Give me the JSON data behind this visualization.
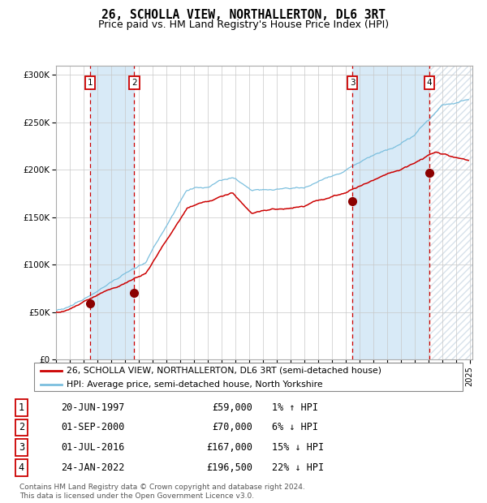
{
  "title": "26, SCHOLLA VIEW, NORTHALLERTON, DL6 3RT",
  "subtitle": "Price paid vs. HM Land Registry's House Price Index (HPI)",
  "ylim": [
    0,
    310000
  ],
  "yticks": [
    0,
    50000,
    100000,
    150000,
    200000,
    250000,
    300000
  ],
  "ytick_labels": [
    "£0",
    "£50K",
    "£100K",
    "£150K",
    "£200K",
    "£250K",
    "£300K"
  ],
  "background_color": "#ffffff",
  "plot_bg_color": "#ffffff",
  "grid_color": "#c8c8c8",
  "hpi_line_color": "#7bbfde",
  "price_line_color": "#cc0000",
  "sale_marker_color": "#8b0000",
  "sale_dashed_color": "#cc0000",
  "highlight_bg_color": "#d8eaf7",
  "legend_line1": "26, SCHOLLA VIEW, NORTHALLERTON, DL6 3RT (semi-detached house)",
  "legend_line2": "HPI: Average price, semi-detached house, North Yorkshire",
  "sales": [
    {
      "num": 1,
      "date_label": "20-JUN-1997",
      "year": 1997.47,
      "price": 59000,
      "pct": "1% ↑ HPI"
    },
    {
      "num": 2,
      "date_label": "01-SEP-2000",
      "year": 2000.67,
      "price": 70000,
      "pct": "6% ↓ HPI"
    },
    {
      "num": 3,
      "date_label": "01-JUL-2016",
      "year": 2016.5,
      "price": 167000,
      "pct": "15% ↓ HPI"
    },
    {
      "num": 4,
      "date_label": "24-JAN-2022",
      "year": 2022.07,
      "price": 196500,
      "pct": "22% ↓ HPI"
    }
  ],
  "footer_text": "Contains HM Land Registry data © Crown copyright and database right 2024.\nThis data is licensed under the Open Government Licence v3.0."
}
